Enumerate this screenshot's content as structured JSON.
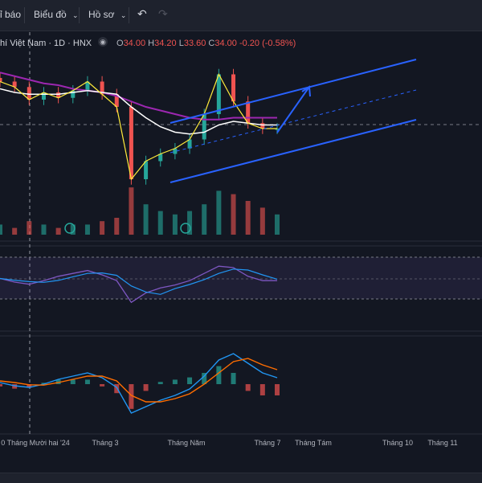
{
  "toolbar": {
    "items": [
      "ỉ báo",
      "Biểu đồ",
      "Hồ sơ"
    ],
    "undo_icon": "undo-icon",
    "redo_icon": "redo-icon"
  },
  "legend": {
    "symbol": "hí Việt Nam · 1D · HNX",
    "open_label": "O",
    "open": "34.00",
    "high_label": "H",
    "high": "34.20",
    "low_label": "L",
    "low": "33.60",
    "close_label": "C",
    "close": "34.00",
    "change": "-0.20 (-0.58%)"
  },
  "colors": {
    "background": "#131722",
    "up": "#26a69a",
    "down": "#ef5350",
    "channel": "#2962ff",
    "ma_purple": "#9c27b0",
    "ma_white": "#ffffff",
    "ma_yellow": "#ffeb3b",
    "rsi_line": "#7e57c2",
    "macd_line": "#2196f3",
    "signal_line": "#ff6d00"
  },
  "chart_data": {
    "type": "line",
    "xlabel": "",
    "ylabel": "",
    "x_tick_labels": [
      "0 Tháng Mười hai '24",
      "Tháng 3",
      "Tháng Năm",
      "Tháng 7",
      "Tháng Tám",
      "Tháng 10",
      "Tháng 11"
    ],
    "x": [
      0,
      8,
      16,
      24,
      32,
      40,
      48,
      56,
      64,
      72,
      80,
      88,
      96,
      104,
      112,
      120,
      128,
      136,
      144,
      152
    ],
    "series": [
      {
        "values": [
          36.6,
          36.3,
          35.6,
          36.0,
          35.7,
          36.1,
          36.6,
          35.9,
          35.2,
          31.2,
          32.2,
          32.6,
          32.9,
          33.4,
          34.8,
          37.0,
          35.5,
          34.3,
          34.0,
          34.0
        ]
      },
      {
        "values": [
          36.2,
          36.0,
          35.9,
          35.9,
          35.9,
          36.0,
          36.1,
          36.0,
          35.9,
          35.2,
          34.6,
          34.1,
          33.8,
          33.7,
          33.8,
          34.2,
          34.4,
          34.3,
          34.2,
          34.2
        ]
      },
      {
        "values": [
          37.1,
          36.9,
          36.7,
          36.5,
          36.4,
          36.2,
          36.1,
          36.0,
          35.8,
          35.5,
          35.2,
          35.0,
          34.8,
          34.6,
          34.5,
          34.5,
          34.6,
          34.6,
          34.6,
          34.6
        ]
      }
    ],
    "volume": [
      3,
      2,
      4,
      3,
      2,
      3,
      3,
      4,
      5,
      14,
      9,
      7,
      6,
      7,
      9,
      13,
      12,
      10,
      8,
      6
    ],
    "rsi": [
      55,
      50,
      47,
      52,
      58,
      62,
      66,
      60,
      52,
      22,
      35,
      42,
      46,
      52,
      62,
      72,
      70,
      58,
      52,
      52
    ],
    "macd": [
      0.05,
      -0.05,
      -0.1,
      0.0,
      0.15,
      0.25,
      0.35,
      0.2,
      -0.1,
      -0.9,
      -0.7,
      -0.5,
      -0.35,
      -0.15,
      0.25,
      0.75,
      0.95,
      0.65,
      0.35,
      0.2
    ],
    "signal": [
      0.1,
      0.05,
      -0.02,
      -0.03,
      0.05,
      0.15,
      0.25,
      0.25,
      0.1,
      -0.35,
      -0.55,
      -0.55,
      -0.45,
      -0.3,
      0.0,
      0.35,
      0.7,
      0.8,
      0.6,
      0.45
    ]
  }
}
